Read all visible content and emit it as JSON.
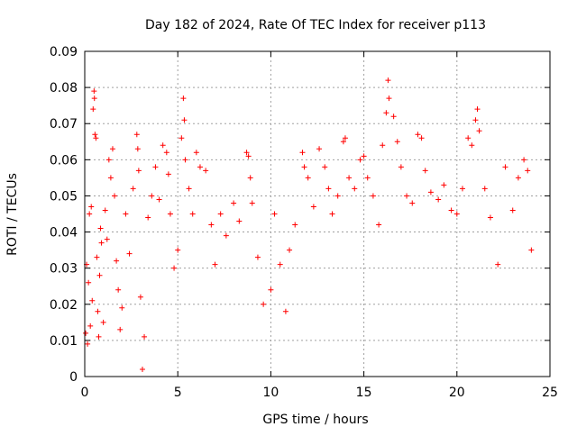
{
  "chart_data": {
    "type": "scatter",
    "title": "Day 182 of 2024, Rate Of TEC Index for receiver p113",
    "xlabel": "GPS time / hours",
    "ylabel": "ROTI / TECUs",
    "xlim": [
      0,
      25
    ],
    "ylim": [
      0,
      0.09
    ],
    "x_ticks": [
      "0",
      "5",
      "10",
      "15",
      "20",
      "25"
    ],
    "y_ticks": [
      "0",
      "0.01",
      "0.02",
      "0.03",
      "0.04",
      "0.05",
      "0.06",
      "0.07",
      "0.08",
      "0.09"
    ],
    "grid": true,
    "marker": "+",
    "color": "#ff0000",
    "series": [
      {
        "points": [
          [
            0.05,
            0.012
          ],
          [
            0.1,
            0.031
          ],
          [
            0.15,
            0.009
          ],
          [
            0.2,
            0.026
          ],
          [
            0.25,
            0.045
          ],
          [
            0.3,
            0.014
          ],
          [
            0.35,
            0.047
          ],
          [
            0.4,
            0.021
          ],
          [
            0.45,
            0.074
          ],
          [
            0.5,
            0.079
          ],
          [
            0.52,
            0.077
          ],
          [
            0.55,
            0.067
          ],
          [
            0.6,
            0.066
          ],
          [
            0.65,
            0.033
          ],
          [
            0.7,
            0.018
          ],
          [
            0.75,
            0.011
          ],
          [
            0.8,
            0.028
          ],
          [
            0.85,
            0.041
          ],
          [
            0.9,
            0.037
          ],
          [
            1.0,
            0.015
          ],
          [
            1.1,
            0.046
          ],
          [
            1.2,
            0.038
          ],
          [
            1.3,
            0.06
          ],
          [
            1.4,
            0.055
          ],
          [
            1.5,
            0.063
          ],
          [
            1.6,
            0.05
          ],
          [
            1.7,
            0.032
          ],
          [
            1.8,
            0.024
          ],
          [
            1.9,
            0.013
          ],
          [
            2.0,
            0.019
          ],
          [
            2.2,
            0.045
          ],
          [
            2.4,
            0.034
          ],
          [
            2.6,
            0.052
          ],
          [
            2.8,
            0.067
          ],
          [
            2.85,
            0.063
          ],
          [
            2.9,
            0.057
          ],
          [
            3.0,
            0.022
          ],
          [
            3.1,
            0.002
          ],
          [
            3.2,
            0.011
          ],
          [
            3.4,
            0.044
          ],
          [
            3.6,
            0.05
          ],
          [
            3.8,
            0.058
          ],
          [
            4.0,
            0.049
          ],
          [
            4.2,
            0.064
          ],
          [
            4.4,
            0.062
          ],
          [
            4.5,
            0.056
          ],
          [
            4.6,
            0.045
          ],
          [
            4.8,
            0.03
          ],
          [
            5.0,
            0.035
          ],
          [
            5.2,
            0.066
          ],
          [
            5.3,
            0.077
          ],
          [
            5.35,
            0.071
          ],
          [
            5.4,
            0.06
          ],
          [
            5.6,
            0.052
          ],
          [
            5.8,
            0.045
          ],
          [
            6.0,
            0.062
          ],
          [
            6.2,
            0.058
          ],
          [
            6.5,
            0.057
          ],
          [
            6.8,
            0.042
          ],
          [
            7.0,
            0.031
          ],
          [
            7.3,
            0.045
          ],
          [
            7.6,
            0.039
          ],
          [
            8.0,
            0.048
          ],
          [
            8.3,
            0.043
          ],
          [
            8.7,
            0.062
          ],
          [
            8.8,
            0.061
          ],
          [
            8.9,
            0.055
          ],
          [
            9.0,
            0.048
          ],
          [
            9.3,
            0.033
          ],
          [
            9.6,
            0.02
          ],
          [
            10.0,
            0.024
          ],
          [
            10.2,
            0.045
          ],
          [
            10.5,
            0.031
          ],
          [
            10.8,
            0.018
          ],
          [
            11.0,
            0.035
          ],
          [
            11.3,
            0.042
          ],
          [
            11.7,
            0.062
          ],
          [
            11.8,
            0.058
          ],
          [
            12.0,
            0.055
          ],
          [
            12.3,
            0.047
          ],
          [
            12.6,
            0.063
          ],
          [
            12.9,
            0.058
          ],
          [
            13.1,
            0.052
          ],
          [
            13.3,
            0.045
          ],
          [
            13.6,
            0.05
          ],
          [
            13.9,
            0.065
          ],
          [
            14.0,
            0.066
          ],
          [
            14.2,
            0.055
          ],
          [
            14.5,
            0.052
          ],
          [
            14.8,
            0.06
          ],
          [
            15.0,
            0.061
          ],
          [
            15.2,
            0.055
          ],
          [
            15.5,
            0.05
          ],
          [
            15.8,
            0.042
          ],
          [
            16.0,
            0.064
          ],
          [
            16.2,
            0.073
          ],
          [
            16.3,
            0.082
          ],
          [
            16.35,
            0.077
          ],
          [
            16.6,
            0.072
          ],
          [
            16.8,
            0.065
          ],
          [
            17.0,
            0.058
          ],
          [
            17.3,
            0.05
          ],
          [
            17.6,
            0.048
          ],
          [
            17.9,
            0.067
          ],
          [
            18.1,
            0.066
          ],
          [
            18.3,
            0.057
          ],
          [
            18.6,
            0.051
          ],
          [
            19.0,
            0.049
          ],
          [
            19.3,
            0.053
          ],
          [
            19.7,
            0.046
          ],
          [
            20.0,
            0.045
          ],
          [
            20.3,
            0.052
          ],
          [
            20.6,
            0.066
          ],
          [
            20.8,
            0.064
          ],
          [
            21.0,
            0.071
          ],
          [
            21.1,
            0.074
          ],
          [
            21.2,
            0.068
          ],
          [
            21.5,
            0.052
          ],
          [
            21.8,
            0.044
          ],
          [
            22.2,
            0.031
          ],
          [
            22.6,
            0.058
          ],
          [
            23.0,
            0.046
          ],
          [
            23.3,
            0.055
          ],
          [
            23.6,
            0.06
          ],
          [
            23.8,
            0.057
          ],
          [
            24.0,
            0.035
          ]
        ]
      }
    ]
  }
}
